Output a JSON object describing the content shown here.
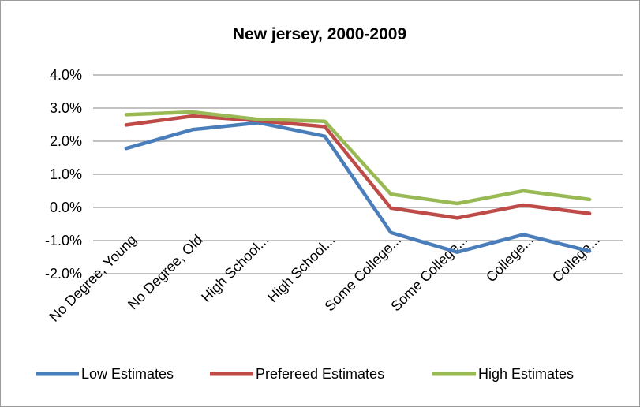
{
  "chart_data": {
    "type": "line",
    "title": "New jersey, 2000-2009",
    "xlabel": "",
    "ylabel": "",
    "categories": [
      "No Degree, Young",
      "No Degree, Old",
      "High School...",
      "High School...",
      "Some College...",
      "Some College...",
      "College...",
      "College..."
    ],
    "ylim": [
      -0.02,
      0.04
    ],
    "y_ticks": [
      0.04,
      0.03,
      0.02,
      0.01,
      0.0,
      -0.01,
      -0.02
    ],
    "y_tick_labels": [
      "4.0%",
      "3.0%",
      "2.0%",
      "1.0%",
      "0.0%",
      "-1.0%",
      "-2.0%"
    ],
    "grid": true,
    "legend_position": "bottom",
    "series": [
      {
        "name": "Low Estimates",
        "color": "#4a7ebb",
        "values": [
          0.0178,
          0.0235,
          0.0256,
          0.0215,
          -0.0076,
          -0.0135,
          -0.0082,
          -0.0132
        ]
      },
      {
        "name": "Prefereed Estimates",
        "color": "#be4b48",
        "values": [
          0.0249,
          0.0276,
          0.0262,
          0.0244,
          -0.0002,
          -0.0032,
          0.0007,
          -0.0018
        ]
      },
      {
        "name": "High Estimates",
        "color": "#98b954",
        "values": [
          0.028,
          0.0288,
          0.0266,
          0.026,
          0.004,
          0.0012,
          0.005,
          0.0024
        ]
      }
    ]
  }
}
